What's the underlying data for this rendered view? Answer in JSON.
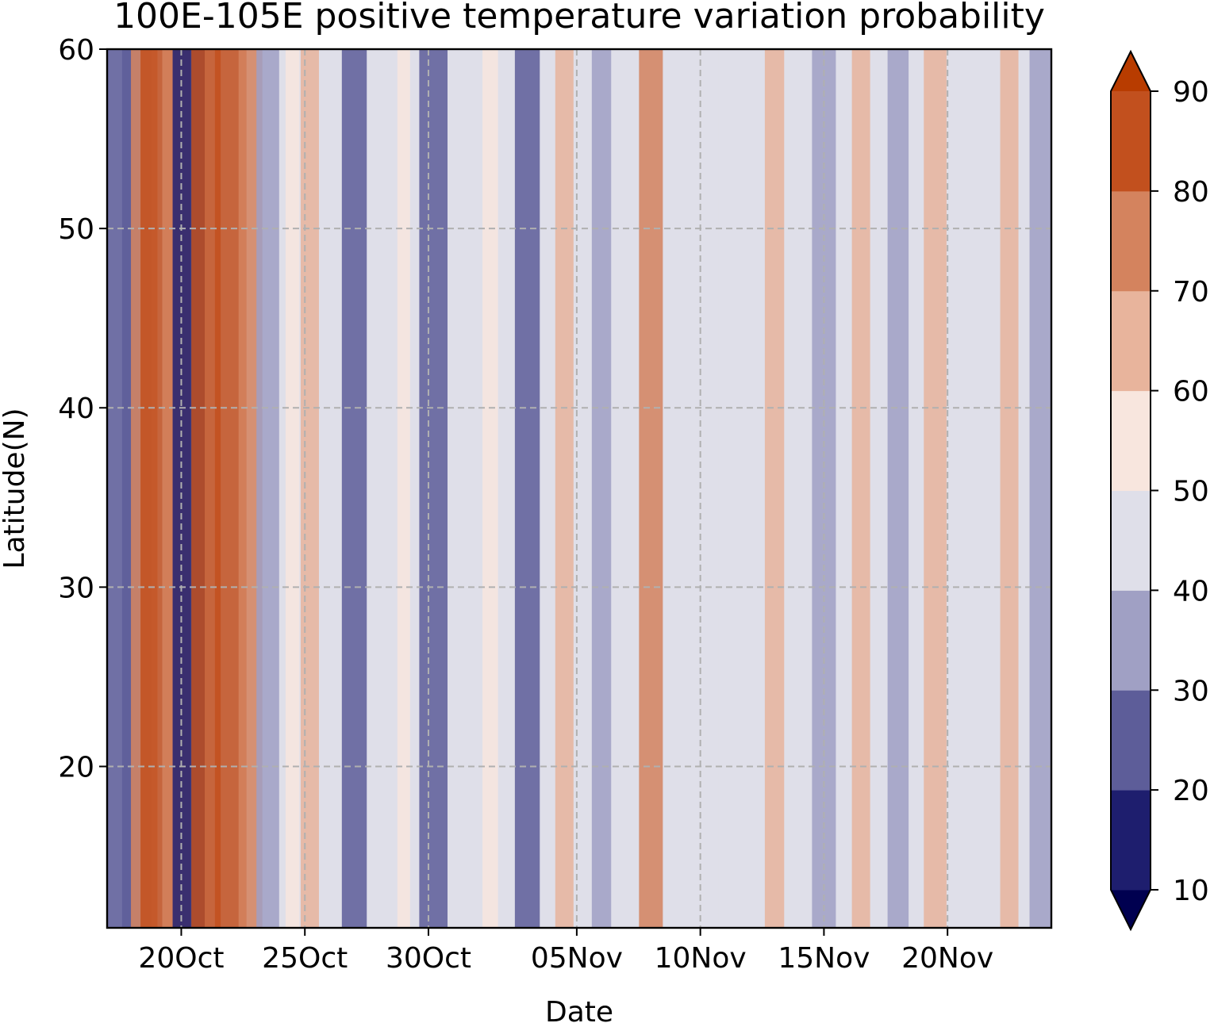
{
  "chart_data": {
    "type": "heatmap",
    "subtype": "filled-contour",
    "title": "100E-105E positive temperature variation probability",
    "xlabel": "Date",
    "ylabel": "Latitude(N)",
    "x_ticks": [
      {
        "label": "20Oct",
        "day": 3
      },
      {
        "label": "25Oct",
        "day": 8
      },
      {
        "label": "30Oct",
        "day": 13
      },
      {
        "label": "05Nov",
        "day": 19
      },
      {
        "label": "10Nov",
        "day": 24
      },
      {
        "label": "15Nov",
        "day": 29
      },
      {
        "label": "20Nov",
        "day": 34
      }
    ],
    "xlim_days": [
      0,
      38.2
    ],
    "ylim": [
      11,
      60
    ],
    "y_ticks": [
      20,
      30,
      40,
      50,
      60
    ],
    "grid": true,
    "colorbar": {
      "levels": [
        10,
        20,
        30,
        40,
        50,
        60,
        70,
        80,
        90
      ],
      "tick_labels": [
        "10",
        "20",
        "30",
        "40",
        "50",
        "60",
        "70",
        "80",
        "90"
      ],
      "colors": [
        "#000050",
        "#1e1e6e",
        "#5d5d99",
        "#a0a0c4",
        "#dfdfe9",
        "#f8e6de",
        "#e8b49c",
        "#d4835e",
        "#c2501e",
        "#b83c00"
      ],
      "extend": "both"
    },
    "bands": [
      {
        "day": 0.5,
        "value": 28
      },
      {
        "day": 1.2,
        "value": 20
      },
      {
        "day": 1.5,
        "value": 75
      },
      {
        "day": 2.0,
        "value": 85
      },
      {
        "day": 2.8,
        "value": 78
      },
      {
        "day": 3.3,
        "value": 15
      },
      {
        "day": 4.0,
        "value": 80
      },
      {
        "day": 5.0,
        "value": 84
      },
      {
        "day": 5.8,
        "value": 70
      },
      {
        "day": 6.5,
        "value": 32
      },
      {
        "day": 7.5,
        "value": 52
      },
      {
        "day": 8.2,
        "value": 60
      },
      {
        "day": 10.0,
        "value": 28
      },
      {
        "day": 12.0,
        "value": 50
      },
      {
        "day": 13.2,
        "value": 22
      },
      {
        "day": 15.5,
        "value": 55
      },
      {
        "day": 17.0,
        "value": 28
      },
      {
        "day": 18.5,
        "value": 60
      },
      {
        "day": 20.0,
        "value": 38
      },
      {
        "day": 22.0,
        "value": 70
      },
      {
        "day": 25.0,
        "value": 48
      },
      {
        "day": 27.0,
        "value": 62
      },
      {
        "day": 29.0,
        "value": 30
      },
      {
        "day": 30.5,
        "value": 60
      },
      {
        "day": 32.0,
        "value": 35
      },
      {
        "day": 33.5,
        "value": 68
      },
      {
        "day": 35.0,
        "value": 40
      },
      {
        "day": 36.5,
        "value": 60
      },
      {
        "day": 37.8,
        "value": 30
      }
    ]
  }
}
